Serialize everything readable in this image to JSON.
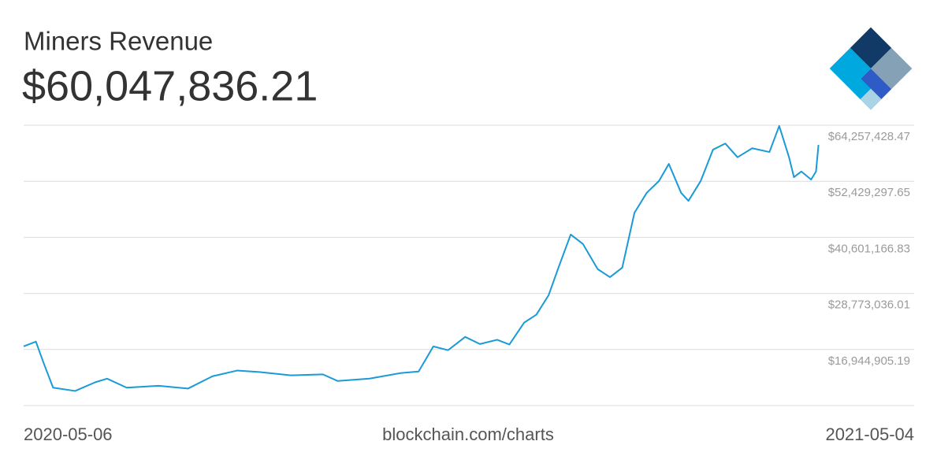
{
  "chart_data": {
    "type": "line",
    "title": "Miners Revenue",
    "subtitle": "$60,047,836.21",
    "source": "blockchain.com/charts",
    "x": [
      "2020-05-06",
      "2020-05-11",
      "2020-05-14",
      "2020-05-18",
      "2020-05-27",
      "2020-06-04",
      "2020-06-09",
      "2020-06-17",
      "2020-06-30",
      "2020-07-12",
      "2020-07-22",
      "2020-08-01",
      "2020-08-10",
      "2020-08-23",
      "2020-09-05",
      "2020-09-11",
      "2020-09-24",
      "2020-10-07",
      "2020-10-14",
      "2020-10-20",
      "2020-10-26",
      "2020-11-02",
      "2020-11-08",
      "2020-11-15",
      "2020-11-20",
      "2020-11-26",
      "2020-12-01",
      "2020-12-06",
      "2020-12-10",
      "2020-12-15",
      "2020-12-20",
      "2020-12-26",
      "2020-12-31",
      "2021-01-05",
      "2021-01-10",
      "2021-01-15",
      "2021-01-20",
      "2021-01-24",
      "2021-01-29",
      "2021-02-01",
      "2021-02-06",
      "2021-02-11",
      "2021-02-16",
      "2021-02-21",
      "2021-02-27",
      "2021-03-06",
      "2021-03-10",
      "2021-03-14",
      "2021-03-16",
      "2021-03-19",
      "2021-03-23",
      "2021-03-25",
      "2021-03-26"
    ],
    "series": [
      {
        "name": "Miners Revenue",
        "color": "#1a9ad6",
        "values": [
          17600000,
          18600000,
          14300000,
          8900000,
          8200000,
          10000000,
          10800000,
          8900000,
          9300000,
          8700000,
          11300000,
          12500000,
          12200000,
          11500000,
          11700000,
          10300000,
          10800000,
          12000000,
          12300000,
          17600000,
          16800000,
          19600000,
          18100000,
          19000000,
          18000000,
          22600000,
          24300000,
          28400000,
          34200000,
          41200000,
          39200000,
          33900000,
          32200000,
          34200000,
          45800000,
          50000000,
          52500000,
          56100000,
          50000000,
          48300000,
          52500000,
          59100000,
          60400000,
          57500000,
          59400000,
          58600000,
          64100000,
          57500000,
          53300000,
          54500000,
          52800000,
          54500000,
          60100000
        ]
      }
    ],
    "xlim": [
      "2020-05-06",
      "2021-05-04"
    ],
    "xticks": [
      "2020-05-06",
      "2021-05-04"
    ],
    "ylim": [
      5116774.37,
      64257428.47
    ],
    "yticks": [
      {
        "value": 16944905.19,
        "label": "$16,944,905.19"
      },
      {
        "value": 28773036.01,
        "label": "$28,773,036.01"
      },
      {
        "value": 40601166.83,
        "label": "$40,601,166.83"
      },
      {
        "value": 52429297.65,
        "label": "$52,429,297.65"
      },
      {
        "value": 64257428.47,
        "label": "$64,257,428.47"
      }
    ],
    "grid": true
  }
}
